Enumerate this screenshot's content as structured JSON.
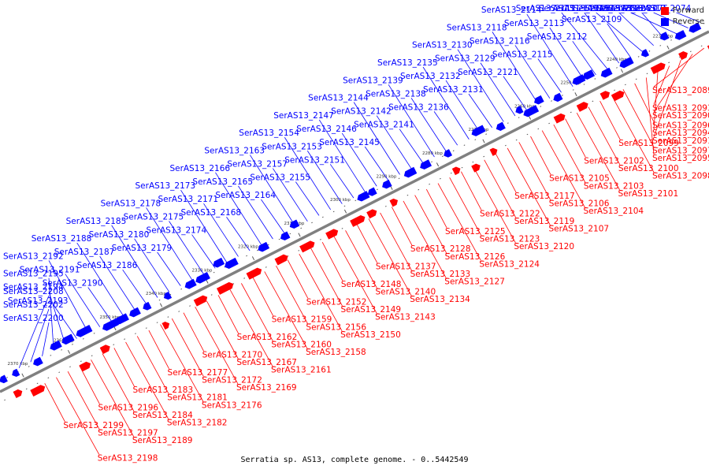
{
  "caption": "Serratia sp. AS13, complete genome. - 0..5442549",
  "legend": [
    {
      "label": "Forward",
      "color": "#ff0000"
    },
    {
      "label": "Reverse",
      "color": "#0000ff"
    }
  ],
  "colors": {
    "forward": "#ff0000",
    "reverse": "#0000ff",
    "backbone": "#808080"
  },
  "ticks": [
    "2230 kbp",
    "2240 kbp",
    "2250 kbp",
    "2260 kbp",
    "2270 kbp",
    "2280 kbp",
    "2290 kbp",
    "2300 kbp",
    "2310 kbp",
    "2320 kbp",
    "2330 kbp",
    "2340 kbp",
    "2350 kbp",
    "2360 kbp",
    "2370 kbp"
  ],
  "reverse_genes": [
    "SerAS13_2074",
    "SerAS13_2075",
    "SerAS13_2082",
    "SerAS13_2083",
    "SerAS13_2092",
    "SerAS13_2108",
    "SerAS13_2109",
    "SerAS13_2110",
    "SerAS13_2111",
    "SerAS13_2112",
    "SerAS13_2113",
    "SerAS13_2114",
    "SerAS13_2115",
    "SerAS13_2116",
    "SerAS13_2118",
    "SerAS13_2121",
    "SerAS13_2129",
    "SerAS13_2130",
    "SerAS13_2131",
    "SerAS13_2132",
    "SerAS13_2135",
    "SerAS13_2136",
    "SerAS13_2138",
    "SerAS13_2139",
    "SerAS13_2141",
    "SerAS13_2142",
    "SerAS13_2144",
    "SerAS13_2145",
    "SerAS13_2146",
    "SerAS13_2147",
    "SerAS13_2151",
    "SerAS13_2153",
    "SerAS13_2154",
    "SerAS13_2155",
    "SerAS13_2157",
    "SerAS13_2163",
    "SerAS13_2164",
    "SerAS13_2165",
    "SerAS13_2166",
    "SerAS13_2168",
    "SerAS13_2171",
    "SerAS13_2173",
    "SerAS13_2174",
    "SerAS13_2175",
    "SerAS13_2178",
    "SerAS13_2179",
    "SerAS13_2180",
    "SerAS13_2185",
    "SerAS13_2186",
    "SerAS13_2187",
    "SerAS13_2188",
    "SerAS13_2190",
    "SerAS13_2191",
    "SerAS13_2192",
    "SerAS13_2193",
    "SerAS13_2194",
    "SerAS13_2195",
    "SerAS13_2200",
    "SerAS13_2202",
    "SerAS13_2208"
  ],
  "forward_genes": [
    "SerAS13_2089",
    "SerAS13_2090",
    "SerAS13_2091",
    "SerAS13_2093",
    "SerAS13_2094",
    "SerAS13_2095",
    "SerAS13_2096",
    "SerAS13_2097",
    "SerAS13_2098",
    "SerAS13_2099",
    "SerAS13_2100",
    "SerAS13_2101",
    "SerAS13_2102",
    "SerAS13_2103",
    "SerAS13_2104",
    "SerAS13_2105",
    "SerAS13_2106",
    "SerAS13_2107",
    "SerAS13_2117",
    "SerAS13_2119",
    "SerAS13_2120",
    "SerAS13_2122",
    "SerAS13_2123",
    "SerAS13_2124",
    "SerAS13_2125",
    "SerAS13_2126",
    "SerAS13_2127",
    "SerAS13_2128",
    "SerAS13_2133",
    "SerAS13_2134",
    "SerAS13_2137",
    "SerAS13_2140",
    "SerAS13_2143",
    "SerAS13_2148",
    "SerAS13_2149",
    "SerAS13_2150",
    "SerAS13_2152",
    "SerAS13_2156",
    "SerAS13_2158",
    "SerAS13_2159",
    "SerAS13_2160",
    "SerAS13_2161",
    "SerAS13_2162",
    "SerAS13_2167",
    "SerAS13_2169",
    "SerAS13_2170",
    "SerAS13_2172",
    "SerAS13_2176",
    "SerAS13_2177",
    "SerAS13_2181",
    "SerAS13_2182",
    "SerAS13_2183",
    "SerAS13_2184",
    "SerAS13_2189",
    "SerAS13_2196",
    "SerAS13_2197",
    "SerAS13_2198",
    "SerAS13_2199"
  ]
}
